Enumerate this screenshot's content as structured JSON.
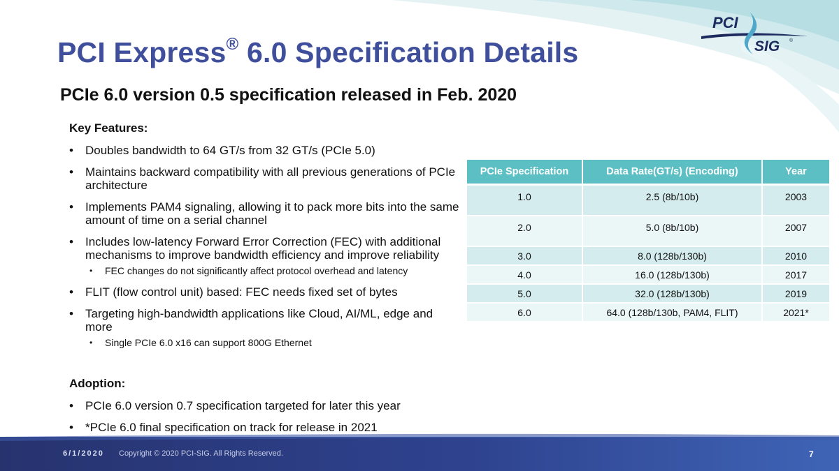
{
  "title": {
    "main": "PCI Express",
    "reg": "®",
    "rest": " 6.0 Specification Details"
  },
  "subtitle": "PCIe 6.0 version 0.5 specification released in Feb. 2020",
  "logo": {
    "line1": "PCI",
    "line2": "SIG",
    "reg": "®"
  },
  "key_features": {
    "heading": "Key Features:",
    "items": [
      {
        "text": "Doubles bandwidth to 64 GT/s from 32 GT/s (PCIe 5.0)"
      },
      {
        "text": "Maintains backward compatibility with all previous generations of PCIe architecture"
      },
      {
        "text": "Implements PAM4 signaling, allowing it to pack more bits into the same amount of time on a serial channel"
      },
      {
        "text": "Includes low-latency Forward Error Correction (FEC) with additional mechanisms to improve bandwidth efficiency and improve reliability",
        "sub": "FEC changes do not significantly affect protocol overhead and latency"
      },
      {
        "text": "FLIT (flow control unit) based: FEC needs fixed set of bytes"
      },
      {
        "text": "Targeting high-bandwidth applications like Cloud, AI/ML, edge and more",
        "sub": "Single PCIe 6.0 x16 can support 800G Ethernet"
      }
    ]
  },
  "adoption": {
    "heading": "Adoption:",
    "items": [
      "PCIe 6.0 version 0.7 specification targeted for later this year",
      "*PCIe 6.0 final specification on track for release in 2021"
    ]
  },
  "table": {
    "headers": [
      "PCIe Specification",
      "Data Rate(GT/s) (Encoding)",
      "Year"
    ],
    "rows": [
      [
        "1.0",
        "2.5 (8b/10b)",
        "2003"
      ],
      [
        "2.0",
        "5.0 (8b/10b)",
        "2007"
      ],
      [
        "3.0",
        "8.0 (128b/130b)",
        "2010"
      ],
      [
        "4.0",
        "16.0 (128b/130b)",
        "2017"
      ],
      [
        "5.0",
        "32.0 (128b/130b)",
        "2019"
      ],
      [
        "6.0",
        "64.0 (128b/130b, PAM4, FLIT)",
        "2021*"
      ]
    ]
  },
  "footer": {
    "date": "6/1/2020",
    "copyright": "Copyright © 2020 PCI-SIG. All Rights Reserved.",
    "page": "7"
  },
  "colors": {
    "title": "#3f4f9c",
    "table_header": "#5bbfc4",
    "table_row_dark": "#d5ecee",
    "table_row_light": "#ebf6f7",
    "footer_dark": "#27336f",
    "footer_light": "#3f64b6"
  }
}
